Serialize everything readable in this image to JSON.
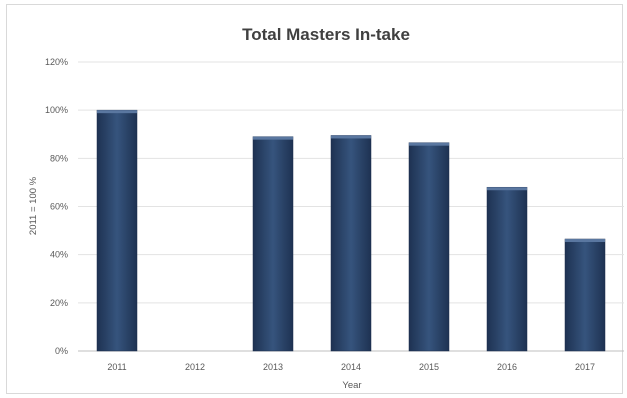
{
  "chart_data": {
    "type": "bar",
    "title": "Total Masters In-take",
    "xlabel": "Year",
    "ylabel": "2011 = 100 %",
    "categories": [
      "2011",
      "2012",
      "2013",
      "2014",
      "2015",
      "2016",
      "2017"
    ],
    "values": [
      100,
      null,
      89,
      89.5,
      86.5,
      68,
      46.5
    ],
    "ylim": [
      0,
      120
    ],
    "yticks": [
      0,
      20,
      40,
      60,
      80,
      100,
      120
    ],
    "ytick_labels": [
      "0%",
      "20%",
      "40%",
      "60%",
      "80%",
      "100%",
      "120%"
    ],
    "grid": true,
    "legend": "none",
    "bar_color": "#2f4a6e"
  }
}
